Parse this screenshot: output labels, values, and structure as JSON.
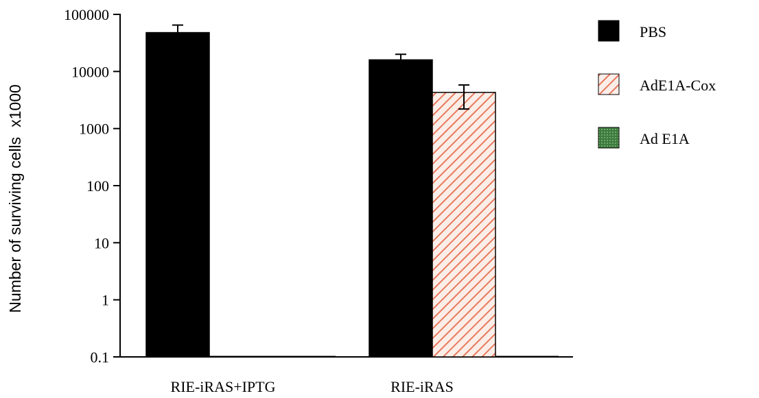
{
  "chart_data": {
    "type": "bar",
    "yscale": "log",
    "ylim": [
      0.1,
      100000
    ],
    "yticks": [
      "100000",
      "10000",
      "1000",
      "100",
      "10",
      "1",
      "0.1"
    ],
    "ylabel": "Number of surviving cells",
    "ylabel_unit": "x1000",
    "categories": [
      "RIE-iRAS+IPTG",
      "RIE-iRAS"
    ],
    "series": [
      {
        "name": "PBS",
        "fill": "solid",
        "color": "#000000",
        "values": [
          48000,
          16000
        ],
        "error": [
          65000,
          20000
        ]
      },
      {
        "name": "AdE1A-Cox",
        "fill": "hatch",
        "color": "#e8795e",
        "values": [
          0.1,
          4300
        ],
        "error": [
          null,
          5800
        ],
        "error_low": [
          null,
          2200
        ]
      },
      {
        "name": "Ad E1A",
        "fill": "dotted",
        "color": "#3d7a3d",
        "values": [
          0.1,
          0.1
        ],
        "error": [
          null,
          null
        ]
      }
    ],
    "grid": false,
    "legend_position": "right"
  }
}
